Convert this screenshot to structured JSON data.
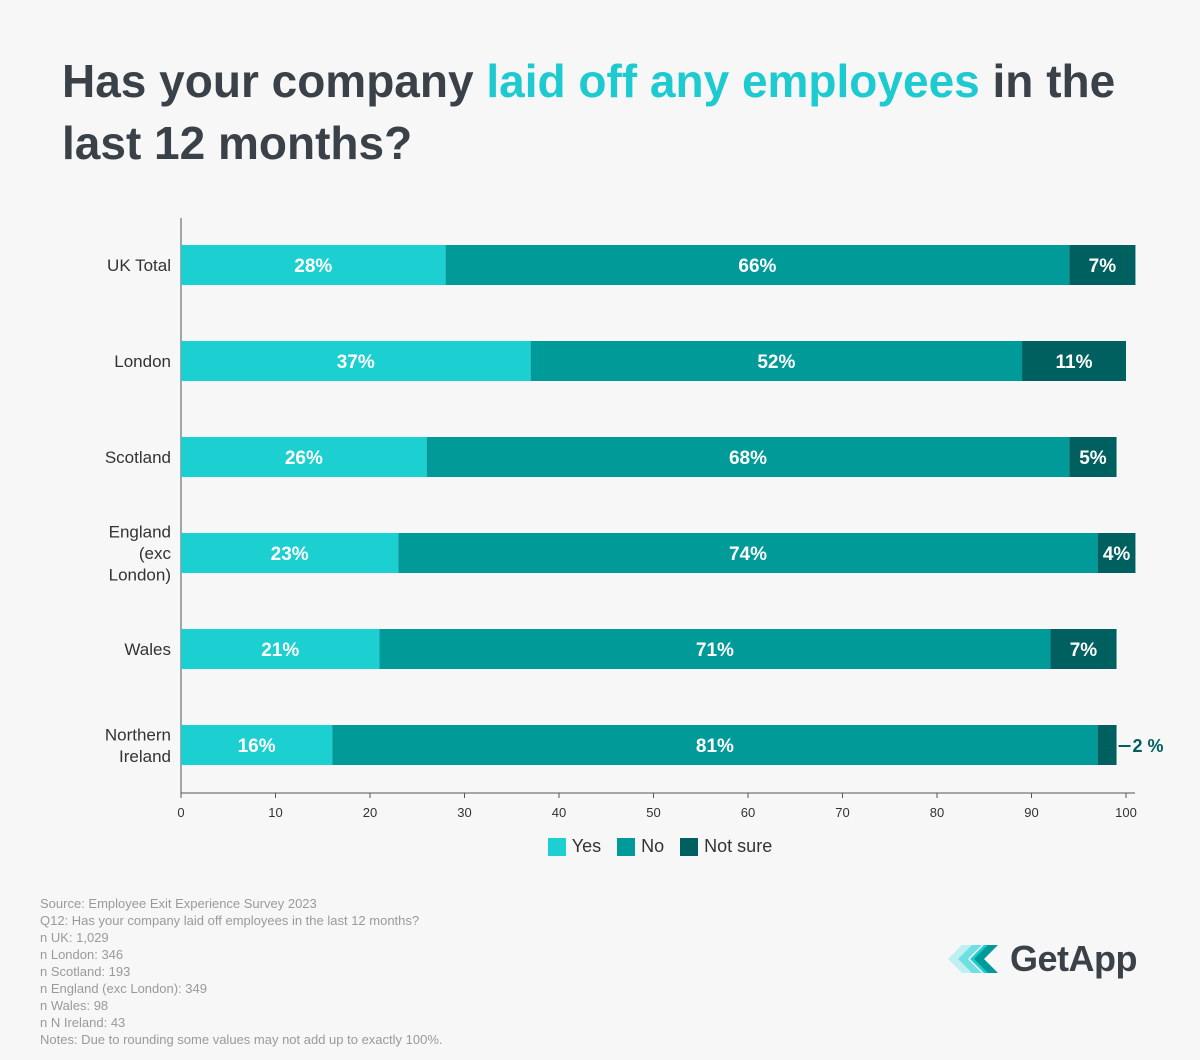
{
  "title": {
    "part1": "Has your company ",
    "highlight": "laid off any employees",
    "part2": " in the last 12 months?"
  },
  "colors": {
    "yes": "#1ccfd1",
    "no": "#009a98",
    "not_sure": "#006060",
    "title": "#3b4149",
    "highlight": "#1ccad0"
  },
  "chart_data": {
    "type": "bar",
    "orientation": "horizontal",
    "stacked": true,
    "categories": [
      "UK Total",
      "London",
      "Scotland",
      "England (exc London)",
      "Wales",
      "Northern Ireland"
    ],
    "series": [
      {
        "name": "Yes",
        "values": [
          28,
          37,
          26,
          23,
          21,
          16
        ],
        "labels": [
          "28%",
          "37%",
          "26%",
          "23%",
          "21%",
          "16%"
        ]
      },
      {
        "name": "No",
        "values": [
          66,
          52,
          68,
          74,
          71,
          81
        ],
        "labels": [
          "66%",
          "52%",
          "68%",
          "74%",
          "71%",
          "81%"
        ]
      },
      {
        "name": "Not sure",
        "values": [
          7,
          11,
          5,
          4,
          7,
          2
        ],
        "labels": [
          "7%",
          "11%",
          "5%",
          "4%",
          "7%",
          "2 %"
        ]
      }
    ],
    "xlim": [
      0,
      100
    ],
    "xticks": [
      "0",
      "10",
      "20",
      "30",
      "40",
      "50",
      "60",
      "70",
      "80",
      "90",
      "100"
    ],
    "legend_position": "bottom-center"
  },
  "legend": {
    "yes": "Yes",
    "no": "No",
    "not_sure": "Not sure"
  },
  "notes": [
    "Source: Employee Exit Experience Survey 2023",
    "Q12: Has your company laid off employees in the last 12 months?",
    "n UK: 1,029",
    "n London: 346",
    "n Scotland: 193",
    "n England (exc London): 349",
    "n Wales: 98",
    "n N Ireland: 43",
    "Notes: Due to rounding some values may not add up to exactly 100%."
  ],
  "logo": {
    "text": "GetApp",
    "icon": "getapp-chevrons-icon"
  }
}
